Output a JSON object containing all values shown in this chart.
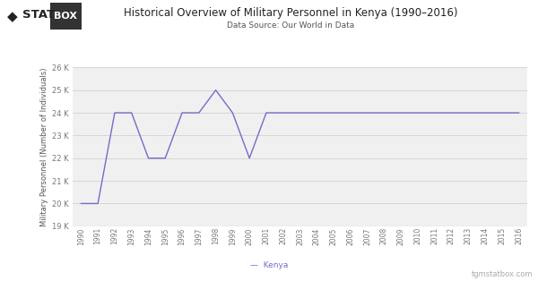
{
  "title": "Historical Overview of Military Personnel in Kenya (1990–2016)",
  "subtitle": "Data Source: Our World in Data",
  "ylabel": "Military Personnel (Number of Individuals)",
  "legend_label": "Kenya",
  "watermark": "tgmstatbox.com",
  "line_color": "#7b68c8",
  "background_color": "#ffffff",
  "plot_bg_color": "#f0f0f0",
  "years": [
    1990,
    1991,
    1992,
    1993,
    1994,
    1995,
    1996,
    1997,
    1998,
    1999,
    2000,
    2001,
    2002,
    2003,
    2004,
    2005,
    2006,
    2007,
    2008,
    2009,
    2010,
    2011,
    2012,
    2013,
    2014,
    2015,
    2016
  ],
  "values": [
    20000,
    20000,
    24000,
    24000,
    22000,
    22000,
    24000,
    24000,
    25000,
    24000,
    22000,
    24000,
    24000,
    24000,
    24000,
    24000,
    24000,
    24000,
    24000,
    24000,
    24000,
    24000,
    24000,
    24000,
    24000,
    24000,
    24000
  ],
  "ylim": [
    19000,
    26000
  ],
  "yticks": [
    19000,
    20000,
    21000,
    22000,
    23000,
    24000,
    25000,
    26000
  ]
}
